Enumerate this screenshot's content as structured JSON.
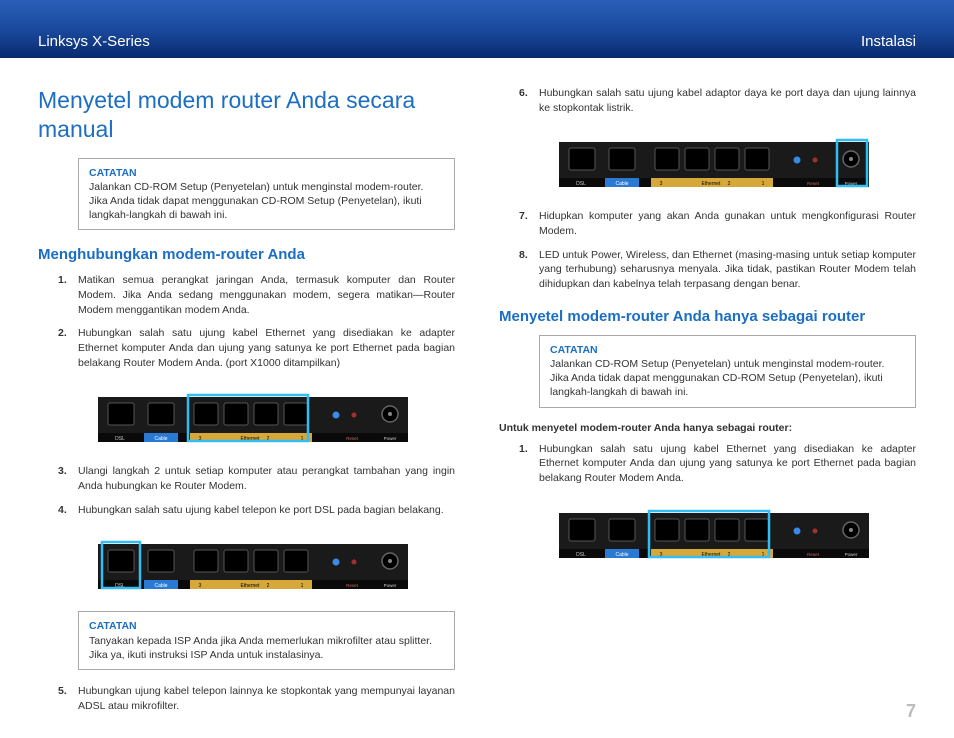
{
  "header": {
    "left": "Linksys X-Series",
    "right": "Instalasi"
  },
  "pagenum": "7",
  "col1": {
    "h1": "Menyetel modem router Anda secara manual",
    "note1": {
      "title": "CATATAN",
      "body": "Jalankan CD-ROM Setup (Penyetelan) untuk menginstal modem-router. Jika Anda tidak dapat menggunakan CD-ROM Setup (Penyetelan), ikuti langkah-langkah di bawah ini."
    },
    "h2a": "Menghubungkan modem-router Anda",
    "steps": {
      "s1": "Matikan semua perangkat jaringan Anda, termasuk komputer dan Router Modem. Jika Anda sedang menggunakan modem, segera matikan—Router Modem menggantikan modem Anda.",
      "s2": "Hubungkan salah satu ujung kabel Ethernet yang disediakan ke adapter Ethernet komputer Anda dan ujung yang satunya ke port Ethernet pada bagian belakang Router Modem Anda. (port X1000 ditampilkan)",
      "s3": "Ulangi langkah 2 untuk setiap komputer atau perangkat tambahan yang ingin Anda hubungkan ke Router Modem.",
      "s4": "Hubungkan salah satu ujung kabel telepon ke port DSL pada bagian belakang.",
      "s5": "Hubungkan ujung kabel telepon lainnya ke stopkontak yang mempunyai layanan ADSL atau mikrofilter."
    },
    "note2": {
      "title": "CATATAN",
      "body": "Tanyakan kepada ISP Anda jika Anda memerlukan mikrofilter atau splitter. Jika ya, ikuti instruksi ISP Anda untuk instalasinya."
    }
  },
  "col2": {
    "steps_cont": {
      "s6": "Hubungkan salah satu ujung kabel adaptor daya ke port daya dan ujung lainnya ke stopkontak listrik.",
      "s7": "Hidupkan komputer yang akan Anda gunakan untuk mengkonfigurasi Router Modem.",
      "s8": "LED untuk Power, Wireless, dan Ethernet (masing-masing untuk setiap komputer yang terhubung) seharusnya menyala. Jika tidak, pastikan Router Modem telah dihidupkan dan kabelnya telah terpasang dengan benar."
    },
    "h2b": "Menyetel modem-router Anda hanya sebagai router",
    "note3": {
      "title": "CATATAN",
      "body": "Jalankan CD-ROM Setup (Penyetelan) untuk menginstal modem-router. Jika Anda tidak dapat menggunakan CD-ROM Setup (Penyetelan), ikuti langkah-langkah di bawah ini."
    },
    "sub": "Untuk menyetel modem-router Anda hanya sebagai router:",
    "steps2": {
      "s1": "Hubungkan salah satu ujung kabel Ethernet yang disediakan ke adapter Ethernet komputer Anda dan ujung yang satunya ke port Ethernet pada bagian belakang Router Modem Anda."
    }
  },
  "router": {
    "labels": {
      "dsl": "DSL",
      "cable": "Cable",
      "eth": "Ethernet",
      "n1": "1",
      "n2": "2",
      "n3": "3",
      "reset": "Reset",
      "power": "Power"
    },
    "colors": {
      "body": "#1a1a1a",
      "label_strip": "#0a0a0a",
      "cable_blue": "#2a7ad4",
      "eth_amber": "#d6a83a",
      "led_blue": "#3a8ae8",
      "led_red": "#a03030",
      "highlight": "#33bdf2"
    }
  }
}
